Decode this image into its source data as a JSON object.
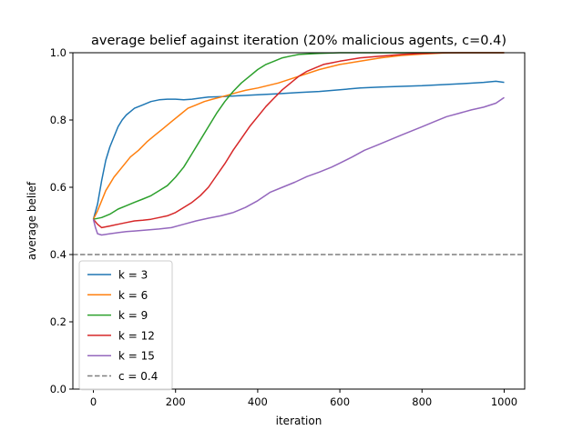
{
  "chart_data": {
    "type": "line",
    "title": "average belief against iteration (20% malicious agents, c=0.4)",
    "xlabel": "iteration",
    "ylabel": "average belief",
    "xlim": [
      -50,
      1050
    ],
    "ylim": [
      0.0,
      1.0
    ],
    "xticks": [
      0,
      200,
      400,
      600,
      800,
      1000
    ],
    "xtick_labels": [
      "0",
      "200",
      "400",
      "600",
      "800",
      "1000"
    ],
    "yticks": [
      0.0,
      0.2,
      0.4,
      0.6,
      0.8,
      1.0
    ],
    "ytick_labels": [
      "0.0",
      "0.2",
      "0.4",
      "0.6",
      "0.8",
      "1.0"
    ],
    "grid": false,
    "legend_position": "lower-left",
    "series": [
      {
        "name": "k = 3",
        "color": "#1f77b4",
        "points": [
          [
            0,
            0.505
          ],
          [
            10,
            0.55
          ],
          [
            20,
            0.62
          ],
          [
            30,
            0.68
          ],
          [
            40,
            0.72
          ],
          [
            50,
            0.75
          ],
          [
            60,
            0.78
          ],
          [
            70,
            0.8
          ],
          [
            80,
            0.815
          ],
          [
            90,
            0.825
          ],
          [
            100,
            0.835
          ],
          [
            120,
            0.845
          ],
          [
            140,
            0.855
          ],
          [
            160,
            0.86
          ],
          [
            180,
            0.862
          ],
          [
            200,
            0.862
          ],
          [
            220,
            0.86
          ],
          [
            240,
            0.862
          ],
          [
            260,
            0.865
          ],
          [
            280,
            0.868
          ],
          [
            300,
            0.869
          ],
          [
            320,
            0.87
          ],
          [
            350,
            0.872
          ],
          [
            400,
            0.875
          ],
          [
            450,
            0.878
          ],
          [
            500,
            0.882
          ],
          [
            550,
            0.885
          ],
          [
            600,
            0.89
          ],
          [
            650,
            0.895
          ],
          [
            700,
            0.898
          ],
          [
            750,
            0.9
          ],
          [
            800,
            0.902
          ],
          [
            850,
            0.905
          ],
          [
            900,
            0.908
          ],
          [
            950,
            0.912
          ],
          [
            980,
            0.915
          ],
          [
            1000,
            0.912
          ]
        ]
      },
      {
        "name": "k = 6",
        "color": "#ff7f0e",
        "points": [
          [
            0,
            0.505
          ],
          [
            10,
            0.53
          ],
          [
            20,
            0.56
          ],
          [
            30,
            0.59
          ],
          [
            40,
            0.61
          ],
          [
            50,
            0.63
          ],
          [
            70,
            0.66
          ],
          [
            90,
            0.69
          ],
          [
            110,
            0.71
          ],
          [
            130,
            0.735
          ],
          [
            150,
            0.755
          ],
          [
            170,
            0.775
          ],
          [
            190,
            0.795
          ],
          [
            210,
            0.815
          ],
          [
            230,
            0.835
          ],
          [
            250,
            0.845
          ],
          [
            270,
            0.855
          ],
          [
            290,
            0.862
          ],
          [
            310,
            0.868
          ],
          [
            330,
            0.875
          ],
          [
            350,
            0.882
          ],
          [
            370,
            0.888
          ],
          [
            400,
            0.895
          ],
          [
            450,
            0.91
          ],
          [
            500,
            0.93
          ],
          [
            550,
            0.95
          ],
          [
            600,
            0.965
          ],
          [
            650,
            0.975
          ],
          [
            700,
            0.985
          ],
          [
            750,
            0.992
          ],
          [
            800,
            0.996
          ],
          [
            850,
            0.999
          ],
          [
            900,
            1.0
          ],
          [
            1000,
            1.0
          ]
        ]
      },
      {
        "name": "k = 9",
        "color": "#2ca02c",
        "points": [
          [
            0,
            0.505
          ],
          [
            20,
            0.51
          ],
          [
            40,
            0.52
          ],
          [
            60,
            0.535
          ],
          [
            80,
            0.545
          ],
          [
            100,
            0.555
          ],
          [
            120,
            0.565
          ],
          [
            140,
            0.575
          ],
          [
            160,
            0.59
          ],
          [
            180,
            0.605
          ],
          [
            200,
            0.63
          ],
          [
            220,
            0.66
          ],
          [
            240,
            0.7
          ],
          [
            260,
            0.74
          ],
          [
            280,
            0.78
          ],
          [
            300,
            0.82
          ],
          [
            320,
            0.855
          ],
          [
            340,
            0.885
          ],
          [
            360,
            0.91
          ],
          [
            380,
            0.93
          ],
          [
            400,
            0.95
          ],
          [
            420,
            0.965
          ],
          [
            440,
            0.975
          ],
          [
            460,
            0.985
          ],
          [
            480,
            0.99
          ],
          [
            500,
            0.995
          ],
          [
            550,
            0.998
          ],
          [
            600,
            1.0
          ],
          [
            1000,
            1.0
          ]
        ]
      },
      {
        "name": "k = 12",
        "color": "#d62728",
        "points": [
          [
            0,
            0.505
          ],
          [
            10,
            0.49
          ],
          [
            20,
            0.48
          ],
          [
            40,
            0.485
          ],
          [
            60,
            0.49
          ],
          [
            80,
            0.495
          ],
          [
            100,
            0.5
          ],
          [
            120,
            0.502
          ],
          [
            140,
            0.505
          ],
          [
            160,
            0.51
          ],
          [
            180,
            0.515
          ],
          [
            200,
            0.525
          ],
          [
            220,
            0.54
          ],
          [
            240,
            0.555
          ],
          [
            260,
            0.575
          ],
          [
            280,
            0.6
          ],
          [
            300,
            0.635
          ],
          [
            320,
            0.67
          ],
          [
            340,
            0.71
          ],
          [
            360,
            0.745
          ],
          [
            380,
            0.78
          ],
          [
            400,
            0.81
          ],
          [
            420,
            0.84
          ],
          [
            440,
            0.865
          ],
          [
            460,
            0.89
          ],
          [
            480,
            0.91
          ],
          [
            500,
            0.93
          ],
          [
            520,
            0.945
          ],
          [
            540,
            0.955
          ],
          [
            560,
            0.965
          ],
          [
            580,
            0.97
          ],
          [
            600,
            0.975
          ],
          [
            650,
            0.985
          ],
          [
            700,
            0.99
          ],
          [
            750,
            0.995
          ],
          [
            800,
            0.998
          ],
          [
            850,
            1.0
          ],
          [
            1000,
            1.0
          ]
        ]
      },
      {
        "name": "k = 15",
        "color": "#9467bd",
        "points": [
          [
            0,
            0.505
          ],
          [
            5,
            0.48
          ],
          [
            10,
            0.462
          ],
          [
            20,
            0.458
          ],
          [
            40,
            0.462
          ],
          [
            60,
            0.465
          ],
          [
            80,
            0.468
          ],
          [
            100,
            0.47
          ],
          [
            130,
            0.473
          ],
          [
            160,
            0.476
          ],
          [
            190,
            0.48
          ],
          [
            220,
            0.49
          ],
          [
            250,
            0.5
          ],
          [
            280,
            0.508
          ],
          [
            310,
            0.515
          ],
          [
            340,
            0.525
          ],
          [
            370,
            0.54
          ],
          [
            400,
            0.56
          ],
          [
            430,
            0.585
          ],
          [
            460,
            0.6
          ],
          [
            490,
            0.615
          ],
          [
            520,
            0.632
          ],
          [
            550,
            0.645
          ],
          [
            580,
            0.66
          ],
          [
            600,
            0.672
          ],
          [
            630,
            0.69
          ],
          [
            660,
            0.71
          ],
          [
            690,
            0.725
          ],
          [
            720,
            0.74
          ],
          [
            750,
            0.755
          ],
          [
            780,
            0.77
          ],
          [
            800,
            0.78
          ],
          [
            830,
            0.795
          ],
          [
            860,
            0.81
          ],
          [
            890,
            0.82
          ],
          [
            920,
            0.83
          ],
          [
            950,
            0.838
          ],
          [
            980,
            0.85
          ],
          [
            1000,
            0.867
          ]
        ]
      }
    ],
    "reference_line": {
      "name": "c = 0.4",
      "y": 0.4,
      "color": "#7f7f7f",
      "style": "dashed"
    }
  }
}
